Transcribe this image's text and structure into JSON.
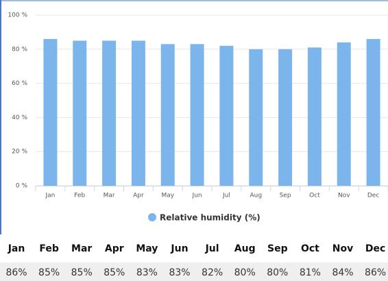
{
  "chart_data": {
    "type": "bar",
    "categories": [
      "Jan",
      "Feb",
      "Mar",
      "Apr",
      "May",
      "Jun",
      "Jul",
      "Aug",
      "Sep",
      "Oct",
      "Nov",
      "Dec"
    ],
    "series": [
      {
        "name": "Relative humidity (%)",
        "color": "#7cb5ec",
        "values": [
          86,
          85,
          85,
          85,
          83,
          83,
          82,
          80,
          80,
          81,
          84,
          86
        ],
        "value_labels": [
          "86%",
          "85%",
          "85%",
          "85%",
          "83%",
          "83%",
          "82%",
          "80%",
          "80%",
          "81%",
          "84%",
          "86%"
        ]
      }
    ],
    "ylim": [
      0,
      100
    ],
    "yticks": [
      {
        "value": 0,
        "label": "0 %"
      },
      {
        "value": 20,
        "label": "20 %"
      },
      {
        "value": 40,
        "label": "40 %"
      },
      {
        "value": 60,
        "label": "60 %"
      },
      {
        "value": 80,
        "label": "80 %"
      },
      {
        "value": 100,
        "label": "100 %"
      }
    ],
    "grid": true
  }
}
